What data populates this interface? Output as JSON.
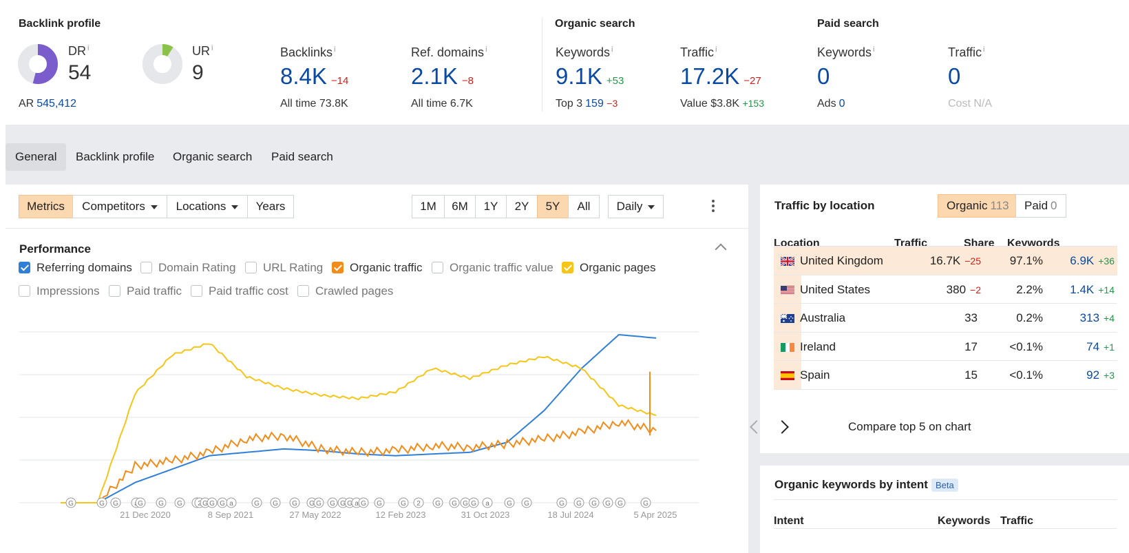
{
  "header": {
    "backlink_title": "Backlink profile",
    "organic_title": "Organic search",
    "paid_title": "Paid search",
    "dr": {
      "label": "DR",
      "value": "54",
      "sub_label": "AR",
      "sub_value": "545,412",
      "level": 0.54
    },
    "ur": {
      "label": "UR",
      "value": "9",
      "level": 0.09
    },
    "backlinks": {
      "label": "Backlinks",
      "value": "8.4K",
      "delta": "−14",
      "sub_label": "All time",
      "sub_value": "73.8K"
    },
    "ref_domains": {
      "label": "Ref. domains",
      "value": "2.1K",
      "delta": "−8",
      "sub_label": "All time",
      "sub_value": "6.7K"
    },
    "org_keywords": {
      "label": "Keywords",
      "value": "9.1K",
      "delta": "+53",
      "sub_label": "Top 3",
      "sub_value": "159",
      "sub_delta": "−3"
    },
    "org_traffic": {
      "label": "Traffic",
      "value": "17.2K",
      "delta": "−27",
      "sub_label": "Value",
      "sub_value": "$3.8K",
      "sub_delta": "+153"
    },
    "paid_keywords": {
      "label": "Keywords",
      "value": "0",
      "sub_label": "Ads",
      "sub_value": "0"
    },
    "paid_traffic": {
      "label": "Traffic",
      "value": "0",
      "sub_label": "Cost",
      "sub_value": "N/A"
    },
    "info_mark": "i"
  },
  "tabs": [
    "General",
    "Backlink profile",
    "Organic search",
    "Paid search"
  ],
  "toolbar": {
    "metrics": "Metrics",
    "competitors": "Competitors",
    "locations": "Locations",
    "years": "Years",
    "ranges": [
      "1M",
      "6M",
      "1Y",
      "2Y",
      "5Y",
      "All"
    ],
    "active_range": "5Y",
    "interval": "Daily"
  },
  "performance": {
    "title": "Performance",
    "checkboxes": [
      {
        "label": "Referring domains",
        "checked": true,
        "color": "#2f7fd8"
      },
      {
        "label": "Domain Rating",
        "checked": false
      },
      {
        "label": "URL Rating",
        "checked": false
      },
      {
        "label": "Organic traffic",
        "checked": true,
        "color": "#f28c1a"
      },
      {
        "label": "Organic traffic value",
        "checked": false
      },
      {
        "label": "Organic pages",
        "checked": true,
        "color": "#f5c518"
      },
      {
        "label": "Impressions",
        "checked": false
      },
      {
        "label": "Paid traffic",
        "checked": false
      },
      {
        "label": "Paid traffic cost",
        "checked": false
      },
      {
        "label": "Crawled pages",
        "checked": false
      }
    ]
  },
  "chart_data": {
    "type": "line",
    "x_ticks": [
      "21 Dec 2020",
      "8 Sep 2021",
      "27 May 2022",
      "12 Feb 2023",
      "31 Oct 2023",
      "18 Jul 2024",
      "5 Apr 2025"
    ],
    "grid": true,
    "series": [
      {
        "name": "Referring domains",
        "color": "#2f7fd8",
        "values": [
          0,
          0,
          0.12,
          0.2,
          0.28,
          0.3,
          0.32,
          0.31,
          0.29,
          0.28,
          0.29,
          0.3,
          0.36,
          0.55,
          0.8,
          1.0,
          0.98
        ]
      },
      {
        "name": "Organic traffic",
        "color": "#f28c1a",
        "values": [
          0,
          0,
          0.22,
          0.25,
          0.3,
          0.38,
          0.4,
          0.32,
          0.3,
          0.31,
          0.34,
          0.33,
          0.35,
          0.38,
          0.42,
          0.48,
          0.43
        ]
      },
      {
        "name": "Organic pages",
        "color": "#f5c518",
        "values": [
          0,
          0,
          0.65,
          0.88,
          0.95,
          0.75,
          0.68,
          0.64,
          0.62,
          0.66,
          0.8,
          0.74,
          0.82,
          0.87,
          0.8,
          0.58,
          0.52
        ]
      }
    ],
    "annotation_markers": [
      "G",
      "a",
      "2"
    ]
  },
  "traffic_by_location": {
    "title": "Traffic by location",
    "organic_label": "Organic",
    "organic_count": "113",
    "paid_label": "Paid",
    "paid_count": "0",
    "columns": [
      "Location",
      "Traffic",
      "Share",
      "Keywords"
    ],
    "rows": [
      {
        "country": "United Kingdom",
        "traffic": "16.7K",
        "traffic_delta": "−25",
        "share": "97.1%",
        "keywords": "6.9K",
        "keywords_delta": "+36",
        "flag": "uk-flag",
        "share_level": 0.971
      },
      {
        "country": "United States",
        "traffic": "380",
        "traffic_delta": "−2",
        "share": "2.2%",
        "keywords": "1.4K",
        "keywords_delta": "+14",
        "flag": "us-flag",
        "share_level": 0.022
      },
      {
        "country": "Australia",
        "traffic": "33",
        "traffic_delta": "",
        "share": "0.2%",
        "keywords": "313",
        "keywords_delta": "+4",
        "flag": "au-flag",
        "share_level": 0.002
      },
      {
        "country": "Ireland",
        "traffic": "17",
        "traffic_delta": "",
        "share": "<0.1%",
        "keywords": "74",
        "keywords_delta": "+1",
        "flag": "ie-flag",
        "share_level": 0.001
      },
      {
        "country": "Spain",
        "traffic": "15",
        "traffic_delta": "",
        "share": "<0.1%",
        "keywords": "92",
        "keywords_delta": "+3",
        "flag": "es-flag",
        "share_level": 0.001
      }
    ],
    "compare_label": "Compare top 5 on chart"
  },
  "intent": {
    "title": "Organic keywords by intent",
    "badge": "Beta",
    "columns": [
      "Intent",
      "Keywords",
      "Traffic"
    ]
  },
  "colors": {
    "accent_orange": "#fcd8b0",
    "link_blue": "#0b4aa3",
    "negative": "#d0201a",
    "positive": "#24964a"
  }
}
